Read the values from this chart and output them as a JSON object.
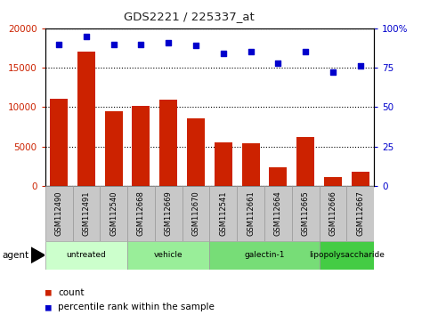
{
  "title": "GDS2221 / 225337_at",
  "samples": [
    "GSM112490",
    "GSM112491",
    "GSM112540",
    "GSM112668",
    "GSM112669",
    "GSM112670",
    "GSM112541",
    "GSM112661",
    "GSM112664",
    "GSM112665",
    "GSM112666",
    "GSM112667"
  ],
  "counts": [
    11100,
    17100,
    9500,
    10200,
    11000,
    8600,
    5500,
    5400,
    2400,
    6200,
    1100,
    1800
  ],
  "percentile": [
    90,
    95,
    90,
    90,
    91,
    89,
    84,
    85,
    78,
    85,
    72,
    76
  ],
  "bar_color": "#cc2200",
  "dot_color": "#0000cc",
  "ylim_left": [
    0,
    20000
  ],
  "ylim_right": [
    0,
    100
  ],
  "yticks_left": [
    0,
    5000,
    10000,
    15000,
    20000
  ],
  "yticks_right": [
    0,
    25,
    50,
    75,
    100
  ],
  "yticklabels_left": [
    "0",
    "5000",
    "10000",
    "15000",
    "20000"
  ],
  "yticklabels_right": [
    "0",
    "25",
    "50",
    "75",
    "100%"
  ],
  "groups": [
    {
      "label": "untreated",
      "indices": [
        0,
        1,
        2
      ],
      "color": "#ccffcc"
    },
    {
      "label": "vehicle",
      "indices": [
        3,
        4,
        5
      ],
      "color": "#99ee99"
    },
    {
      "label": "galectin-1",
      "indices": [
        6,
        7,
        8,
        9
      ],
      "color": "#77dd77"
    },
    {
      "label": "lipopolysaccharide",
      "indices": [
        10,
        11
      ],
      "color": "#44cc44"
    }
  ],
  "agent_label": "agent",
  "legend_count_label": "count",
  "legend_pct_label": "percentile rank within the sample",
  "background_color": "#ffffff",
  "grid_color": "#000000",
  "axis_label_color_left": "#cc2200",
  "axis_label_color_right": "#0000cc",
  "tick_bg_color": "#c8c8c8"
}
